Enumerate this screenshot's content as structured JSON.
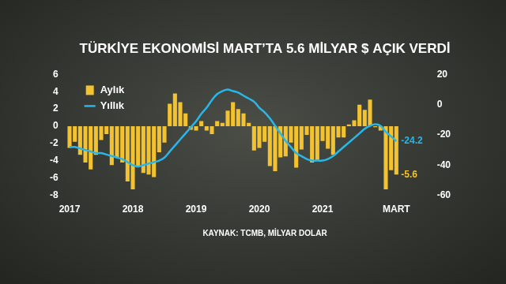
{
  "chart_data": {
    "type": "bar",
    "title": "TÜRKİYE EKONOMİSİ MART’TA 5.6 MİLYAR $ AÇIK VERDİ",
    "source": "KAYNAK: TCMB, MİLYAR DOLAR",
    "categories": [
      "2017",
      null,
      null,
      null,
      null,
      null,
      null,
      null,
      null,
      null,
      null,
      null,
      "2018",
      null,
      null,
      null,
      null,
      null,
      null,
      null,
      null,
      null,
      null,
      null,
      "2019",
      null,
      null,
      null,
      null,
      null,
      null,
      null,
      null,
      null,
      null,
      null,
      "2020",
      null,
      null,
      null,
      null,
      null,
      null,
      null,
      null,
      null,
      null,
      null,
      "2021",
      null,
      null,
      null,
      null,
      null,
      null,
      null,
      null,
      null,
      null,
      null,
      null,
      null,
      "MART"
    ],
    "series": [
      {
        "name": "Aylık",
        "type": "bar",
        "color": "#f2c230",
        "values": [
          -2.5,
          -1.8,
          -3.3,
          -4.2,
          -5.0,
          -3.3,
          -1.6,
          -0.9,
          -4.5,
          -3.6,
          -4.2,
          -6.4,
          -7.3,
          -4.6,
          -5.4,
          -5.6,
          -5.9,
          -3.0,
          -1.9,
          2.6,
          3.8,
          2.8,
          1.5,
          -0.4,
          -0.5,
          0.6,
          -0.5,
          -0.9,
          0.6,
          0.4,
          1.8,
          2.8,
          2.0,
          1.5,
          0.4,
          -2.8,
          -2.5,
          -1.8,
          -4.6,
          -5.2,
          -3.6,
          -3.5,
          -1.9,
          -4.8,
          -2.7,
          -1.0,
          -4.2,
          -3.9,
          -1.7,
          -2.6,
          -3.3,
          -1.3,
          -1.3,
          0.2,
          0.7,
          2.5,
          1.9,
          3.1,
          -0.1,
          -0.5,
          -7.3,
          -5.1,
          -5.6
        ]
      },
      {
        "name": "Yıllık",
        "type": "line",
        "color": "#29b6e8",
        "axis": "y2",
        "values": [
          -28,
          -28,
          -29,
          -30,
          -31,
          -32,
          -32,
          -33,
          -34,
          -35,
          -36,
          -38,
          -40,
          -41,
          -40,
          -39,
          -38,
          -37,
          -35,
          -31,
          -27,
          -23,
          -19,
          -15,
          -11,
          -6,
          -2,
          3,
          7,
          9,
          10,
          9,
          8,
          6,
          4,
          2,
          -2,
          -5,
          -9,
          -14,
          -19,
          -24,
          -28,
          -32,
          -34,
          -36,
          -37,
          -37,
          -37,
          -36,
          -34,
          -31,
          -28,
          -25,
          -22,
          -19,
          -16,
          -14,
          -13,
          -14,
          -18,
          -21,
          -24.2
        ]
      }
    ],
    "ylim": [
      -8,
      6
    ],
    "yticks": [
      -8,
      -6,
      -4,
      -2,
      0,
      2,
      4,
      6
    ],
    "y2lim": [
      -60,
      20
    ],
    "y2ticks": [
      -60,
      -40,
      -20,
      0,
      20
    ],
    "grid": false,
    "legend": "upper left",
    "annotations": [
      {
        "text": "-24.2",
        "value": -24.2,
        "series": "Yıllık"
      },
      {
        "text": "-5.6",
        "value": -5.6,
        "series": "Aylık"
      }
    ]
  }
}
